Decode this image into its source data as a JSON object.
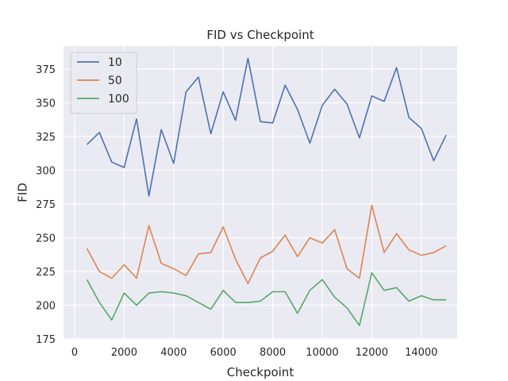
{
  "chart_data": {
    "type": "line",
    "title": "FID vs Checkpoint",
    "xlabel": "Checkpoint",
    "ylabel": "FID",
    "xlim": [
      -450,
      15450
    ],
    "ylim": [
      175,
      392
    ],
    "xticks": [
      0,
      2000,
      4000,
      6000,
      8000,
      10000,
      12000,
      14000
    ],
    "yticks": [
      175,
      200,
      225,
      250,
      275,
      300,
      325,
      350,
      375
    ],
    "grid": true,
    "legend_position": "top-left",
    "x": [
      500,
      1000,
      1500,
      2000,
      2500,
      3000,
      3500,
      4000,
      4500,
      5000,
      5500,
      6000,
      6500,
      7000,
      7500,
      8000,
      8500,
      9000,
      9500,
      10000,
      10500,
      11000,
      11500,
      12000,
      12500,
      13000,
      13500,
      14000,
      14500,
      15000
    ],
    "series": [
      {
        "name": "10",
        "color": "#4c72b0",
        "values": [
          319,
          328,
          306,
          302,
          338,
          281,
          330,
          305,
          358,
          369,
          327,
          358,
          337,
          383,
          336,
          335,
          363,
          345,
          320,
          348,
          360,
          349,
          324,
          355,
          351,
          376,
          339,
          331,
          307,
          326
        ]
      },
      {
        "name": "50",
        "color": "#dd8452",
        "values": [
          242,
          225,
          220,
          230,
          220,
          259,
          231,
          227,
          222,
          238,
          239,
          258,
          234,
          216,
          235,
          240,
          252,
          236,
          250,
          246,
          256,
          227,
          220,
          274,
          239,
          253,
          241,
          237,
          239,
          244
        ]
      },
      {
        "name": "100",
        "color": "#55a868",
        "values": [
          219,
          202,
          189,
          209,
          200,
          209,
          210,
          209,
          207,
          202,
          197,
          211,
          202,
          202,
          203,
          210,
          210,
          194,
          211,
          219,
          206,
          198,
          185,
          224,
          211,
          213,
          203,
          207,
          204,
          204
        ]
      }
    ]
  }
}
